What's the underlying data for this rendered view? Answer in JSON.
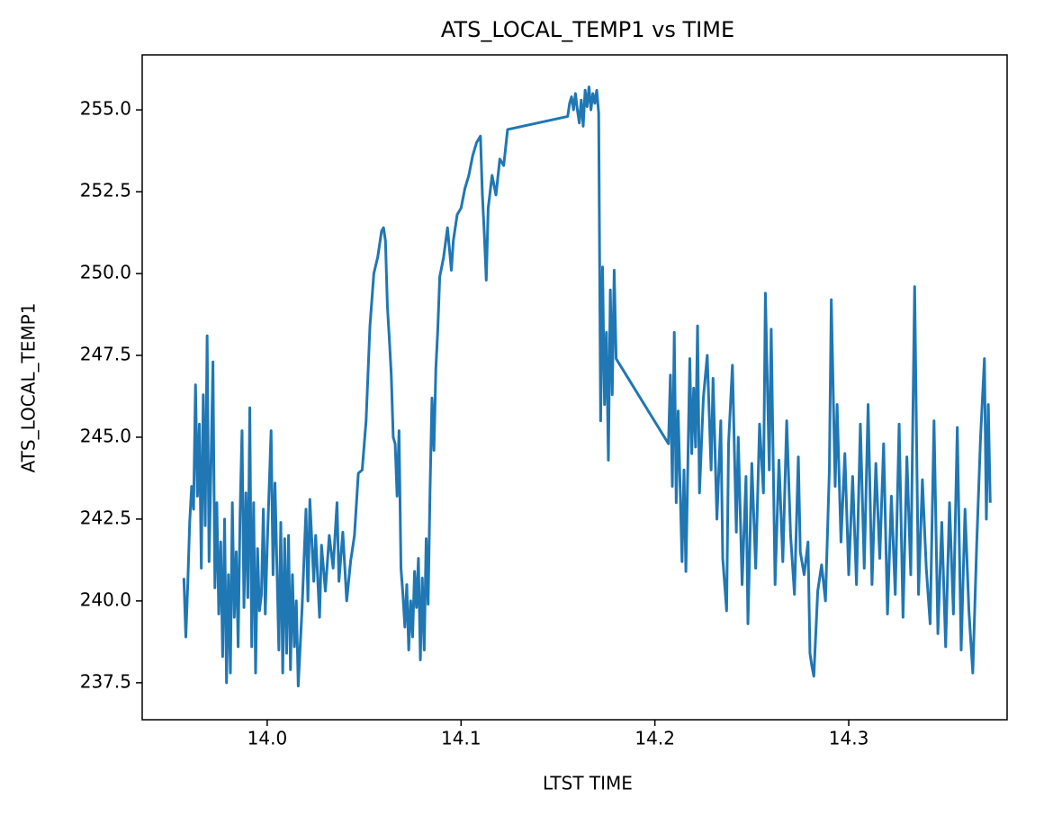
{
  "chart_data": {
    "type": "line",
    "title": "ATS_LOCAL_TEMP1 vs TIME",
    "x_label": "LTST TIME",
    "y_label": "ATS_LOCAL_TEMP1",
    "color": "#1f77b4",
    "xlim": [
      13.9355,
      14.3817
    ],
    "ylim": [
      236.37,
      256.68
    ],
    "xticks": [
      {
        "value": 14,
        "label": "14.0"
      },
      14.1,
      14.2,
      14.3
    ],
    "yticks": [
      237.5,
      {
        "value": 240,
        "label": "240.0"
      },
      242.5,
      {
        "value": 245,
        "label": "245.0"
      },
      247.5,
      {
        "value": 250,
        "label": "250.0"
      },
      252.5,
      {
        "value": 255,
        "label": "255.0"
      }
    ],
    "x": [
      13.957,
      13.958,
      13.959,
      13.96,
      13.961,
      13.962,
      13.963,
      13.964,
      13.965,
      13.966,
      13.967,
      13.968,
      13.969,
      13.97,
      13.971,
      13.972,
      13.973,
      13.974,
      13.975,
      13.976,
      13.977,
      13.978,
      13.979,
      13.98,
      13.981,
      13.982,
      13.983,
      13.984,
      13.985,
      13.986,
      13.987,
      13.988,
      13.989,
      13.99,
      13.991,
      13.992,
      13.993,
      13.994,
      13.995,
      13.996,
      13.997,
      13.998,
      13.999,
      14.0,
      14.002,
      14.003,
      14.004,
      14.006,
      14.007,
      14.008,
      14.009,
      14.01,
      14.011,
      14.012,
      14.013,
      14.014,
      14.015,
      14.016,
      14.018,
      14.02,
      14.021,
      14.022,
      14.024,
      14.025,
      14.027,
      14.028,
      14.03,
      14.032,
      14.034,
      14.036,
      14.037,
      14.039,
      14.041,
      14.043,
      14.045,
      14.047,
      14.049,
      14.051,
      14.053,
      14.055,
      14.057,
      14.059,
      14.06,
      14.061,
      14.062,
      14.063,
      14.064,
      14.065,
      14.066,
      14.067,
      14.068,
      14.069,
      14.07,
      14.071,
      14.072,
      14.073,
      14.074,
      14.075,
      14.076,
      14.077,
      14.078,
      14.079,
      14.08,
      14.081,
      14.082,
      14.083,
      14.084,
      14.085,
      14.086,
      14.087,
      14.088,
      14.089,
      14.091,
      14.093,
      14.095,
      14.096,
      14.098,
      14.1,
      14.102,
      14.104,
      14.106,
      14.108,
      14.11,
      14.111,
      14.112,
      14.113,
      14.114,
      14.116,
      14.118,
      14.12,
      14.122,
      14.124,
      14.155,
      14.156,
      14.157,
      14.158,
      14.159,
      14.16,
      14.161,
      14.162,
      14.163,
      14.164,
      14.165,
      14.166,
      14.167,
      14.168,
      14.169,
      14.17,
      14.171,
      14.172,
      14.173,
      14.174,
      14.175,
      14.176,
      14.177,
      14.178,
      14.179,
      14.18,
      14.207,
      14.208,
      14.209,
      14.21,
      14.211,
      14.212,
      14.214,
      14.215,
      14.216,
      14.218,
      14.219,
      14.22,
      14.221,
      14.222,
      14.223,
      14.225,
      14.227,
      14.229,
      14.23,
      14.232,
      14.234,
      14.235,
      14.237,
      14.238,
      14.24,
      14.242,
      14.243,
      14.245,
      14.247,
      14.248,
      14.25,
      14.252,
      14.254,
      14.256,
      14.257,
      14.259,
      14.26,
      14.262,
      14.264,
      14.266,
      14.268,
      14.27,
      14.272,
      14.274,
      14.275,
      14.277,
      14.279,
      14.28,
      14.281,
      14.282,
      14.284,
      14.286,
      14.288,
      14.29,
      14.291,
      14.293,
      14.294,
      14.296,
      14.298,
      14.3,
      14.302,
      14.304,
      14.306,
      14.308,
      14.31,
      14.312,
      14.314,
      14.316,
      14.318,
      14.32,
      14.322,
      14.324,
      14.326,
      14.328,
      14.33,
      14.332,
      14.334,
      14.336,
      14.338,
      14.34,
      14.342,
      14.344,
      14.346,
      14.348,
      14.35,
      14.352,
      14.354,
      14.356,
      14.358,
      14.36,
      14.362,
      14.364,
      14.366,
      14.368,
      14.37,
      14.371,
      14.372,
      14.373
    ],
    "values": [
      240.7,
      238.9,
      240.5,
      242.4,
      243.5,
      242.8,
      246.6,
      243.2,
      245.4,
      241.0,
      246.3,
      242.3,
      248.1,
      241.2,
      244.2,
      247.3,
      240.4,
      243.0,
      239.6,
      241.8,
      238.3,
      242.5,
      237.5,
      240.8,
      237.8,
      243.0,
      239.5,
      241.5,
      238.6,
      242.7,
      245.2,
      239.8,
      243.3,
      240.1,
      245.9,
      238.6,
      243.0,
      237.8,
      241.6,
      239.7,
      240.2,
      242.8,
      239.6,
      241.7,
      245.2,
      240.8,
      243.6,
      238.5,
      242.4,
      237.8,
      241.9,
      238.4,
      242.0,
      237.9,
      240.8,
      238.6,
      240.0,
      237.4,
      239.8,
      242.8,
      240.0,
      243.1,
      240.6,
      242.0,
      239.5,
      241.7,
      240.3,
      242.0,
      241.0,
      243.0,
      240.6,
      242.1,
      240.0,
      241.2,
      242.0,
      243.9,
      244.0,
      245.5,
      248.4,
      250.0,
      250.5,
      251.3,
      251.4,
      251.0,
      249.0,
      248.0,
      246.9,
      245.0,
      244.8,
      243.2,
      245.2,
      241.0,
      240.2,
      239.2,
      240.5,
      238.5,
      240.0,
      238.9,
      240.9,
      239.8,
      241.3,
      238.2,
      240.7,
      238.5,
      241.9,
      239.9,
      243.4,
      246.2,
      244.6,
      247.1,
      248.3,
      249.9,
      250.5,
      251.4,
      250.1,
      251.0,
      251.8,
      252.0,
      252.6,
      253.0,
      253.6,
      254.0,
      254.2,
      252.4,
      251.2,
      249.8,
      252.0,
      253.0,
      252.4,
      253.5,
      253.3,
      254.4,
      254.8,
      255.2,
      255.4,
      255.0,
      255.5,
      255.0,
      254.6,
      255.3,
      254.5,
      255.6,
      255.1,
      255.7,
      255.0,
      255.5,
      255.2,
      255.6,
      254.9,
      245.5,
      250.2,
      246.0,
      248.2,
      244.3,
      249.5,
      246.3,
      250.1,
      247.4,
      244.8,
      246.9,
      243.5,
      248.2,
      243.0,
      245.8,
      241.2,
      244.0,
      240.9,
      247.4,
      244.5,
      246.5,
      244.7,
      248.4,
      243.3,
      246.2,
      247.5,
      244.0,
      246.8,
      242.5,
      245.5,
      241.3,
      239.7,
      244.8,
      247.2,
      242.1,
      245.0,
      240.5,
      243.8,
      239.3,
      244.2,
      241.0,
      245.4,
      243.3,
      249.4,
      244.0,
      248.3,
      240.5,
      244.3,
      241.2,
      245.5,
      242.0,
      240.2,
      244.4,
      241.5,
      240.8,
      241.8,
      238.4,
      238.0,
      237.7,
      240.3,
      241.1,
      240.0,
      244.0,
      249.2,
      243.5,
      246.0,
      241.8,
      244.5,
      240.8,
      243.8,
      240.5,
      245.4,
      241.0,
      246.0,
      240.5,
      244.2,
      241.3,
      244.8,
      239.6,
      243.2,
      240.2,
      245.4,
      239.5,
      244.4,
      240.8,
      249.6,
      240.2,
      243.7,
      241.0,
      239.3,
      245.5,
      239.0,
      242.4,
      238.6,
      243.0,
      239.6,
      245.3,
      238.5,
      242.8,
      239.7,
      237.8,
      241.7,
      245.0,
      247.4,
      242.5,
      246.0,
      243.0
    ]
  }
}
